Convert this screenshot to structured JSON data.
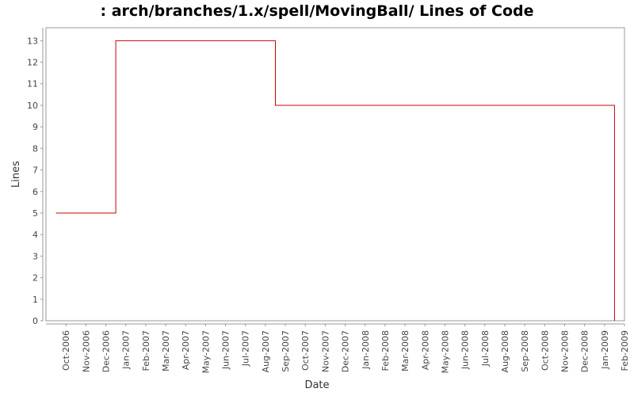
{
  "chart_data": {
    "type": "step-line",
    "title": ": arch/branches/1.x/spell/MovingBall/ Lines of Code",
    "x_label": "Date",
    "y_label": "Lines",
    "x": [
      "Sep-2006",
      "Dec-2006",
      "Aug-2007",
      "Jan-2009"
    ],
    "values": [
      5,
      13,
      10,
      0
    ],
    "color": "#cc0000",
    "xlim": [
      "Sep-2006",
      "Feb-2009"
    ],
    "xticks": [
      "Oct-2006",
      "Nov-2006",
      "Dec-2006",
      "Jan-2007",
      "Feb-2007",
      "Mar-2007",
      "Apr-2007",
      "May-2007",
      "Jun-2007",
      "Jul-2007",
      "Aug-2007",
      "Sep-2007",
      "Oct-2007",
      "Nov-2007",
      "Dec-2007",
      "Jan-2008",
      "Feb-2008",
      "Mar-2008",
      "Apr-2008",
      "May-2008",
      "Jun-2008",
      "Jul-2008",
      "Aug-2008",
      "Sep-2008",
      "Oct-2008",
      "Nov-2008",
      "Dec-2008",
      "Jan-2009",
      "Feb-2009"
    ],
    "ylim": [
      0,
      13.6
    ],
    "yticks": [
      0,
      1,
      2,
      3,
      4,
      5,
      6,
      7,
      8,
      9,
      10,
      11,
      12,
      13
    ],
    "grid": false
  }
}
